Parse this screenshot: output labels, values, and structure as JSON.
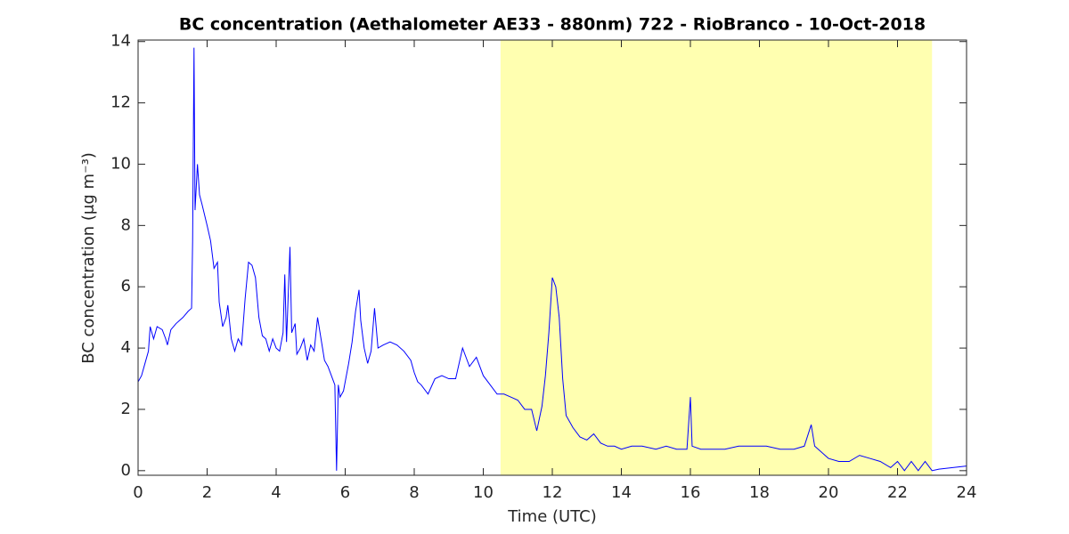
{
  "chart_data": {
    "type": "line",
    "title": "BC concentration (Aethalometer AE33 - 880nm) 722 - RioBranco - 10-Oct-2018",
    "x_label": "Time (UTC)",
    "y_label": "BC concentration (μg m⁻³)",
    "xlim": [
      0,
      24
    ],
    "ylim": [
      -0.15,
      14.05
    ],
    "xticks": [
      0,
      2,
      4,
      6,
      8,
      10,
      12,
      14,
      16,
      18,
      20,
      22,
      24
    ],
    "yticks": [
      0,
      2,
      4,
      6,
      8,
      10,
      12,
      14
    ],
    "shaded_span": [
      10.5,
      23
    ],
    "shade_color": "#ffffb0",
    "x": [
      0,
      0.1,
      0.2,
      0.3,
      0.35,
      0.45,
      0.55,
      0.7,
      0.8,
      0.85,
      0.95,
      1.1,
      1.3,
      1.45,
      1.55,
      1.58,
      1.62,
      1.65,
      1.72,
      1.78,
      1.85,
      2.0,
      2.1,
      2.2,
      2.3,
      2.35,
      2.45,
      2.55,
      2.6,
      2.7,
      2.8,
      2.9,
      3.0,
      3.1,
      3.2,
      3.3,
      3.4,
      3.5,
      3.6,
      3.7,
      3.8,
      3.9,
      4.0,
      4.1,
      4.2,
      4.25,
      4.3,
      4.4,
      4.45,
      4.55,
      4.6,
      4.7,
      4.8,
      4.9,
      5.0,
      5.1,
      5.2,
      5.3,
      5.4,
      5.5,
      5.6,
      5.7,
      5.75,
      5.8,
      5.85,
      5.95,
      6.1,
      6.2,
      6.3,
      6.4,
      6.45,
      6.55,
      6.65,
      6.75,
      6.85,
      6.95,
      7.1,
      7.3,
      7.5,
      7.7,
      7.9,
      8.0,
      8.1,
      8.2,
      8.4,
      8.6,
      8.8,
      9.0,
      9.2,
      9.4,
      9.6,
      9.8,
      10.0,
      10.2,
      10.4,
      10.6,
      10.8,
      11.0,
      11.2,
      11.4,
      11.55,
      11.7,
      11.8,
      11.9,
      12.0,
      12.1,
      12.2,
      12.3,
      12.4,
      12.6,
      12.8,
      13.0,
      13.2,
      13.4,
      13.6,
      13.8,
      14.0,
      14.3,
      14.6,
      15.0,
      15.3,
      15.6,
      15.9,
      16.0,
      16.05,
      16.3,
      16.6,
      17.0,
      17.4,
      17.8,
      18.2,
      18.6,
      19.0,
      19.3,
      19.5,
      19.6,
      19.8,
      20.0,
      20.3,
      20.6,
      20.9,
      21.2,
      21.5,
      21.8,
      22.0,
      22.2,
      22.4,
      22.6,
      22.8,
      23.0,
      23.2,
      23.6,
      24.0
    ],
    "series": [
      {
        "color": "#0000ff",
        "values": [
          2.9,
          3.1,
          3.5,
          3.9,
          4.7,
          4.3,
          4.7,
          4.6,
          4.3,
          4.1,
          4.6,
          4.8,
          5.0,
          5.2,
          5.3,
          7.5,
          13.8,
          8.5,
          10.0,
          9.0,
          8.7,
          8.0,
          7.5,
          6.6,
          6.8,
          5.5,
          4.7,
          5.0,
          5.4,
          4.3,
          3.9,
          4.3,
          4.1,
          5.6,
          6.8,
          6.7,
          6.3,
          5.0,
          4.4,
          4.3,
          3.9,
          4.3,
          4.0,
          3.9,
          4.5,
          6.4,
          4.2,
          7.3,
          4.5,
          4.8,
          3.8,
          4.0,
          4.3,
          3.6,
          4.1,
          3.9,
          5.0,
          4.3,
          3.6,
          3.4,
          3.1,
          2.8,
          0.0,
          2.8,
          2.4,
          2.6,
          3.5,
          4.2,
          5.2,
          5.9,
          4.9,
          4.0,
          3.5,
          3.9,
          5.3,
          4.0,
          4.1,
          4.2,
          4.1,
          3.9,
          3.6,
          3.2,
          2.9,
          2.8,
          2.5,
          3.0,
          3.1,
          3.0,
          3.0,
          4.0,
          3.4,
          3.7,
          3.1,
          2.8,
          2.5,
          2.5,
          2.4,
          2.3,
          2.0,
          2.0,
          1.3,
          2.1,
          3.1,
          4.5,
          6.3,
          6.0,
          5.0,
          3.0,
          1.8,
          1.4,
          1.1,
          1.0,
          1.2,
          0.9,
          0.8,
          0.8,
          0.7,
          0.8,
          0.8,
          0.7,
          0.8,
          0.7,
          0.7,
          2.4,
          0.8,
          0.7,
          0.7,
          0.7,
          0.8,
          0.8,
          0.8,
          0.7,
          0.7,
          0.8,
          1.5,
          0.8,
          0.6,
          0.4,
          0.3,
          0.3,
          0.5,
          0.4,
          0.3,
          0.1,
          0.3,
          0.0,
          0.3,
          0.0,
          0.3,
          0.0,
          0.05,
          0.1,
          0.15
        ]
      }
    ]
  }
}
